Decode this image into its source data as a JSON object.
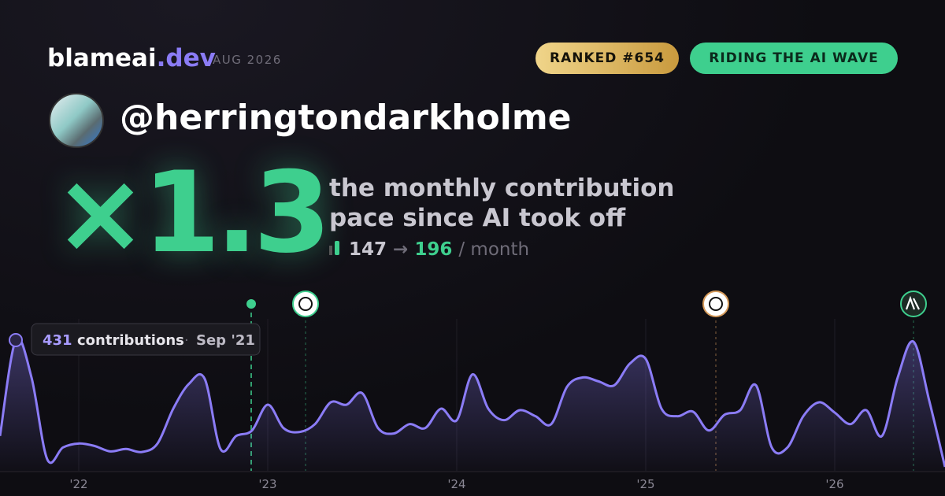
{
  "header": {
    "brand": "blameai",
    "brand_tld": ".dev",
    "date": "AUG 2026",
    "badges": [
      "RANKED #654",
      "RIDING THE AI WAVE"
    ],
    "handle": "@herringtondarkholme"
  },
  "headline": {
    "multiplier": "×1.3",
    "description": [
      "the monthly contribution",
      "pace since AI took off"
    ],
    "before": 147,
    "arrow": "→",
    "after": 196,
    "unit": "/ month"
  },
  "tooltip": {
    "label": "contributions",
    "date": "Sep '21"
  },
  "chart_data": {
    "type": "line",
    "color": "#8b7cf6",
    "x": [
      "2021-08",
      "2021-09",
      "2021-10",
      "2021-11",
      "2021-12",
      "2022-01",
      "2022-02",
      "2022-03",
      "2022-04",
      "2022-05",
      "2022-06",
      "2022-07",
      "2022-08",
      "2022-09",
      "2022-10",
      "2022-11",
      "2022-12",
      "2023-01",
      "2023-02",
      "2023-03",
      "2023-04",
      "2023-05",
      "2023-06",
      "2023-07",
      "2023-08",
      "2023-09",
      "2023-10",
      "2023-11",
      "2023-12",
      "2024-01",
      "2024-02",
      "2024-03",
      "2024-04",
      "2024-05",
      "2024-06",
      "2024-07",
      "2024-08",
      "2024-09",
      "2024-10",
      "2024-11",
      "2024-12",
      "2025-01",
      "2025-02",
      "2025-03",
      "2025-04",
      "2025-05",
      "2025-06",
      "2025-07",
      "2025-08",
      "2025-09",
      "2025-10",
      "2025-11",
      "2025-12",
      "2026-01",
      "2026-02",
      "2026-03",
      "2026-04",
      "2026-05",
      "2026-06",
      "2026-07",
      "2026-08"
    ],
    "values": [
      115,
      431,
      308,
      38,
      77,
      90,
      82,
      64,
      72,
      62,
      90,
      205,
      287,
      303,
      72,
      115,
      133,
      218,
      141,
      128,
      154,
      226,
      218,
      256,
      141,
      123,
      154,
      141,
      205,
      167,
      318,
      205,
      167,
      200,
      180,
      154,
      277,
      308,
      295,
      282,
      354,
      369,
      205,
      180,
      195,
      133,
      185,
      200,
      282,
      77,
      77,
      180,
      226,
      192,
      154,
      200,
      115,
      308,
      426,
      231,
      13
    ],
    "xticks": [
      {
        "value": "2022-01",
        "label": "'22"
      },
      {
        "value": "2023-01",
        "label": "'23"
      },
      {
        "value": "2024-01",
        "label": "'24"
      },
      {
        "value": "2025-01",
        "label": "'25"
      },
      {
        "value": "2026-01",
        "label": "'26"
      }
    ]
  }
}
